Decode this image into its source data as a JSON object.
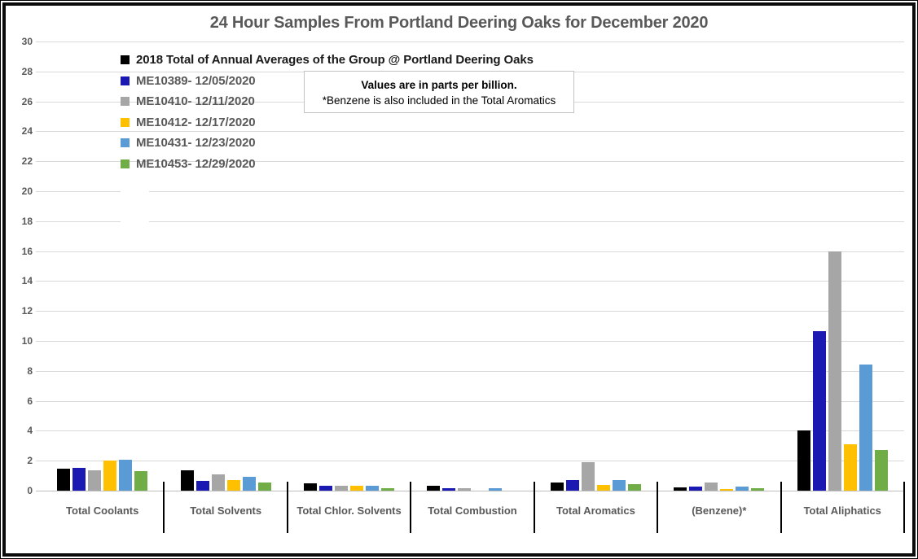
{
  "chart_data": {
    "type": "bar",
    "title": "24 Hour Samples From Portland Deering Oaks for December 2020",
    "title_color": "#595959",
    "units_note": "Values are in parts per billion.",
    "footnote": "*Benzene is also included in the Total Aromatics",
    "categories": [
      "Total Coolants",
      "Total Solvents",
      "Total Chlor. Solvents",
      "Total Combustion",
      "Total Aromatics",
      "(Benzene)*",
      "Total Aliphatics"
    ],
    "series": [
      {
        "name": "2018 Total of Annual Averages of the Group @ Portland Deering Oaks",
        "color": "#000000",
        "label_color": "#1a1a1a",
        "values": [
          1.45,
          1.35,
          0.5,
          0.3,
          0.55,
          0.2,
          4.0
        ]
      },
      {
        "name": "ME10389- 12/05/2020",
        "color": "#1a1ab2",
        "label_color": "#595959",
        "values": [
          1.5,
          0.65,
          0.3,
          0.15,
          0.7,
          0.25,
          10.65
        ]
      },
      {
        "name": "ME10410- 12/11/2020",
        "color": "#a6a6a6",
        "label_color": "#595959",
        "values": [
          1.35,
          1.1,
          0.3,
          0.15,
          1.9,
          0.55,
          16.0
        ]
      },
      {
        "name": "ME10412- 12/17/2020",
        "color": "#ffc000",
        "label_color": "#595959",
        "values": [
          2.0,
          0.7,
          0.3,
          0,
          0.4,
          0.1,
          3.1
        ]
      },
      {
        "name": "ME10431- 12/23/2020",
        "color": "#5b9bd5",
        "label_color": "#595959",
        "values": [
          2.05,
          0.9,
          0.35,
          0.15,
          0.7,
          0.25,
          8.4
        ]
      },
      {
        "name": "ME10453- 12/29/2020",
        "color": "#70ad47",
        "label_color": "#595959",
        "values": [
          1.3,
          0.55,
          0.15,
          0,
          0.45,
          0.15,
          2.7
        ]
      }
    ],
    "ylim": [
      0,
      30
    ],
    "ytick_step": 2,
    "grid": true,
    "legend_position": "top-left-inside-plot",
    "axis_text_color": "#595959",
    "category_text_color": "#595959",
    "grid_color": "#d9d9d9"
  }
}
